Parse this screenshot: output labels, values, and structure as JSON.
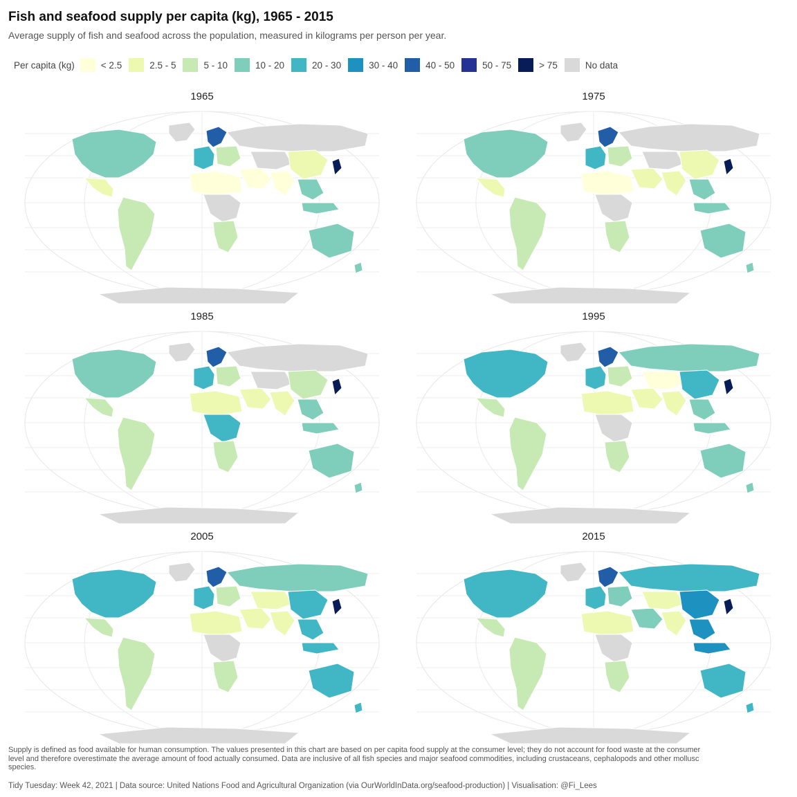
{
  "title": "Fish and seafood supply per capita (kg), 1965 - 2015",
  "subtitle": "Average supply of fish and seafood across the population, measured in kilograms per person per year.",
  "legend": {
    "title": "Per capita (kg)",
    "items": [
      {
        "label": "< 2.5",
        "color": "#ffffd9"
      },
      {
        "label": "2.5 - 5",
        "color": "#edf8b1"
      },
      {
        "label": "5 - 10",
        "color": "#c7e9b4"
      },
      {
        "label": "10 - 20",
        "color": "#7fcdbb"
      },
      {
        "label": "20 - 30",
        "color": "#41b6c4"
      },
      {
        "label": "30 - 40",
        "color": "#1d91c0"
      },
      {
        "label": "40 - 50",
        "color": "#225ea8"
      },
      {
        "label": "50 - 75",
        "color": "#253494"
      },
      {
        "label": "> 75",
        "color": "#081d58"
      },
      {
        "label": "No data",
        "color": "#d9d9d9"
      }
    ]
  },
  "panels": [
    {
      "year": "1965",
      "regions": {
        "north_america": "#7fcdbb",
        "greenland": "#d9d9d9",
        "central_america": "#edf8b1",
        "south_america": "#c7e9b4",
        "western_europe": "#41b6c4",
        "nordic": "#225ea8",
        "eastern_europe": "#c7e9b4",
        "russia": "#d9d9d9",
        "north_africa": "#ffffd9",
        "central_africa": "#d9d9d9",
        "southern_africa": "#c7e9b4",
        "middle_east": "#ffffd9",
        "central_asia": "#d9d9d9",
        "south_asia": "#ffffd9",
        "china": "#edf8b1",
        "southeast_asia": "#7fcdbb",
        "japan": "#081d58",
        "indonesia": "#7fcdbb",
        "australia": "#7fcdbb",
        "new_zealand": "#7fcdbb",
        "antarctica": "#d9d9d9"
      }
    },
    {
      "year": "1975",
      "regions": {
        "north_america": "#7fcdbb",
        "greenland": "#d9d9d9",
        "central_america": "#edf8b1",
        "south_america": "#c7e9b4",
        "western_europe": "#41b6c4",
        "nordic": "#225ea8",
        "eastern_europe": "#c7e9b4",
        "russia": "#d9d9d9",
        "north_africa": "#ffffd9",
        "central_africa": "#d9d9d9",
        "southern_africa": "#c7e9b4",
        "middle_east": "#edf8b1",
        "central_asia": "#d9d9d9",
        "south_asia": "#edf8b1",
        "china": "#edf8b1",
        "southeast_asia": "#7fcdbb",
        "japan": "#081d58",
        "indonesia": "#7fcdbb",
        "australia": "#7fcdbb",
        "new_zealand": "#7fcdbb",
        "antarctica": "#d9d9d9"
      }
    },
    {
      "year": "1985",
      "regions": {
        "north_america": "#7fcdbb",
        "greenland": "#d9d9d9",
        "central_america": "#c7e9b4",
        "south_america": "#c7e9b4",
        "western_europe": "#41b6c4",
        "nordic": "#225ea8",
        "eastern_europe": "#c7e9b4",
        "russia": "#d9d9d9",
        "north_africa": "#edf8b1",
        "central_africa": "#41b6c4",
        "southern_africa": "#c7e9b4",
        "middle_east": "#edf8b1",
        "central_asia": "#d9d9d9",
        "south_asia": "#edf8b1",
        "china": "#c7e9b4",
        "southeast_asia": "#7fcdbb",
        "japan": "#081d58",
        "indonesia": "#7fcdbb",
        "australia": "#7fcdbb",
        "new_zealand": "#7fcdbb",
        "antarctica": "#d9d9d9"
      }
    },
    {
      "year": "1995",
      "regions": {
        "north_america": "#41b6c4",
        "greenland": "#d9d9d9",
        "central_america": "#c7e9b4",
        "south_america": "#c7e9b4",
        "western_europe": "#41b6c4",
        "nordic": "#225ea8",
        "eastern_europe": "#c7e9b4",
        "russia": "#7fcdbb",
        "north_africa": "#edf8b1",
        "central_africa": "#d9d9d9",
        "southern_africa": "#c7e9b4",
        "middle_east": "#edf8b1",
        "central_asia": "#ffffd9",
        "south_asia": "#edf8b1",
        "china": "#41b6c4",
        "southeast_asia": "#7fcdbb",
        "japan": "#081d58",
        "indonesia": "#7fcdbb",
        "australia": "#7fcdbb",
        "new_zealand": "#7fcdbb",
        "antarctica": "#d9d9d9"
      }
    },
    {
      "year": "2005",
      "regions": {
        "north_america": "#41b6c4",
        "greenland": "#d9d9d9",
        "central_america": "#c7e9b4",
        "south_america": "#c7e9b4",
        "western_europe": "#41b6c4",
        "nordic": "#225ea8",
        "eastern_europe": "#c7e9b4",
        "russia": "#7fcdbb",
        "north_africa": "#edf8b1",
        "central_africa": "#d9d9d9",
        "southern_africa": "#c7e9b4",
        "middle_east": "#edf8b1",
        "central_asia": "#edf8b1",
        "south_asia": "#edf8b1",
        "china": "#41b6c4",
        "southeast_asia": "#41b6c4",
        "japan": "#081d58",
        "indonesia": "#41b6c4",
        "australia": "#41b6c4",
        "new_zealand": "#41b6c4",
        "antarctica": "#d9d9d9"
      }
    },
    {
      "year": "2015",
      "regions": {
        "north_america": "#41b6c4",
        "greenland": "#d9d9d9",
        "central_america": "#c7e9b4",
        "south_america": "#c7e9b4",
        "western_europe": "#41b6c4",
        "nordic": "#225ea8",
        "eastern_europe": "#7fcdbb",
        "russia": "#41b6c4",
        "north_africa": "#edf8b1",
        "central_africa": "#d9d9d9",
        "southern_africa": "#c7e9b4",
        "middle_east": "#7fcdbb",
        "central_asia": "#edf8b1",
        "south_asia": "#edf8b1",
        "china": "#1d91c0",
        "southeast_asia": "#1d91c0",
        "japan": "#081d58",
        "indonesia": "#1d91c0",
        "australia": "#41b6c4",
        "new_zealand": "#41b6c4",
        "antarctica": "#d9d9d9"
      }
    }
  ],
  "footnote": "Supply is defined as food available for human consumption. The values presented in this chart are based on per capita food supply at the consumer level; they do not account for food waste at the consumer level and therefore overestimate the average amount of food actually consumed. Data are inclusive of all fish species and major seafood commodities, including crustaceans, cephalopods and other mollusc species.",
  "caption": "Tidy Tuesday: Week 42, 2021 | Data source: United Nations Food and Agricultural Organization (via OurWorldInData.org/seafood-production) | Visualisation: @Fi_Lees"
}
